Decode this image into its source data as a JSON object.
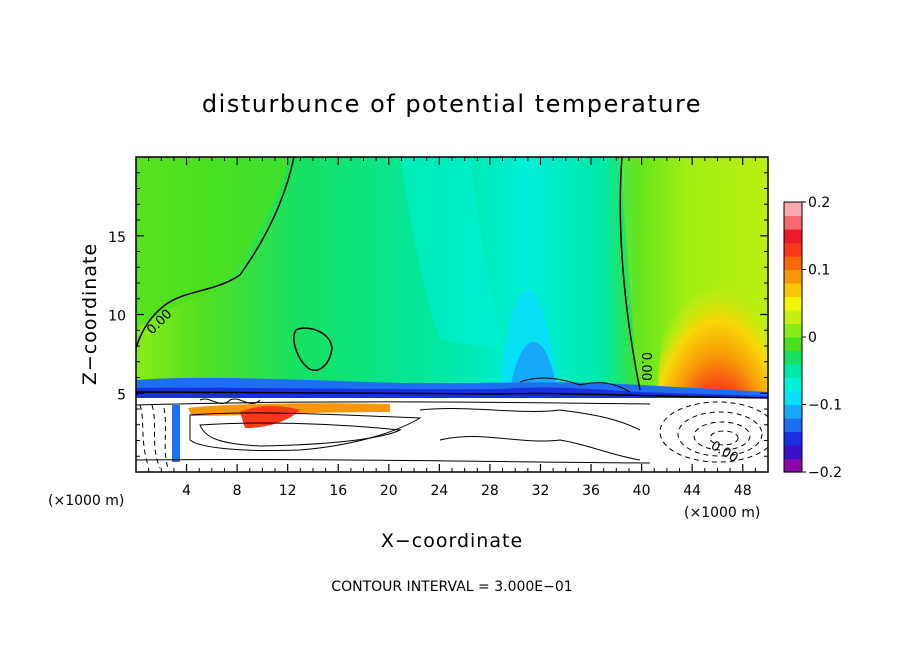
{
  "chart_data": {
    "type": "contour",
    "title": "disturbunce of potential temperature",
    "xlabel": "X−coordinate",
    "ylabel": "Z−coordinate",
    "x_units": "(×1000 m)",
    "x_units_right": "(×1000 m)",
    "xlim": [
      0,
      50
    ],
    "ylim": [
      0,
      20
    ],
    "x_ticks": [
      4,
      8,
      12,
      16,
      20,
      24,
      28,
      32,
      36,
      40,
      44,
      48
    ],
    "x_tick_labels": [
      "4",
      "8",
      "12",
      "16",
      "20",
      "24",
      "28",
      "32",
      "36",
      "40",
      "44",
      "48"
    ],
    "y_ticks": [
      5,
      10,
      15
    ],
    "y_tick_labels": [
      "5",
      "10",
      "15"
    ],
    "colorbar": {
      "min": -0.2,
      "max": 0.2,
      "tick_values": [
        0.2,
        0.1,
        0,
        -0.1,
        -0.2
      ],
      "tick_labels": [
        "0.2",
        "0.1",
        "0",
        "−0.1",
        "−0.2"
      ],
      "colors": [
        "#8a08a8",
        "#3a10c8",
        "#1830e0",
        "#1e6ef0",
        "#18a8f8",
        "#08e0f8",
        "#00f0d8",
        "#00e8a8",
        "#18e060",
        "#48e020",
        "#88ec18",
        "#c8f010",
        "#f8f408",
        "#f8c808",
        "#f89808",
        "#f86808",
        "#f83818",
        "#f01828",
        "#f86870",
        "#f8a8b0"
      ]
    },
    "contour_labels": [
      {
        "text": "0.00",
        "x": 1.2,
        "z": 9.6,
        "angle": -45
      },
      {
        "text": "0.00",
        "x": 40.3,
        "z": 6.5,
        "angle": 90
      },
      {
        "text": "0.00",
        "x": 45.5,
        "z": 1.0,
        "angle": 30
      }
    ],
    "footnote": "CONTOUR INTERVAL = 3.000E−01"
  }
}
